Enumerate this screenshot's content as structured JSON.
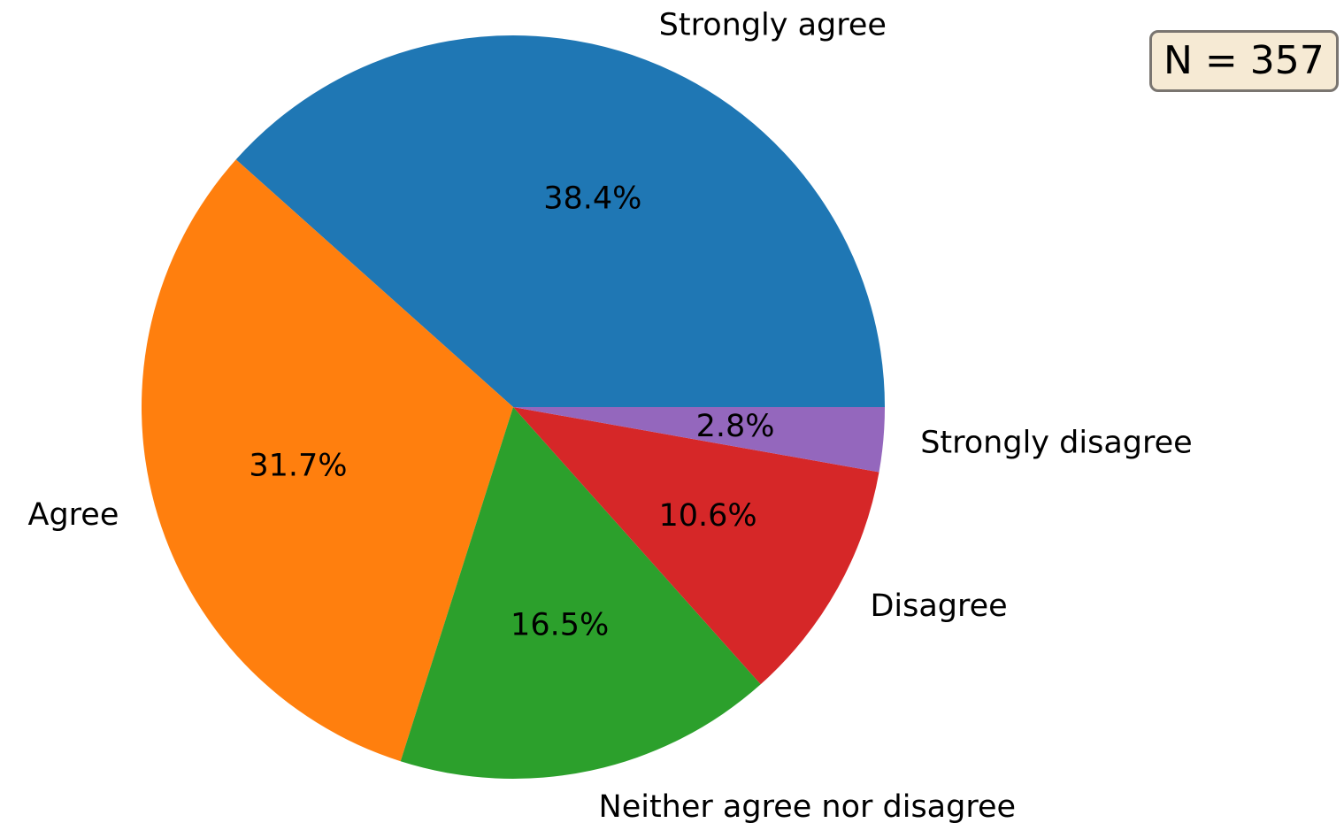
{
  "chart_data": {
    "type": "pie",
    "slices": [
      {
        "label": "Strongly agree",
        "value": 38.4,
        "pct_label": "38.4%",
        "color": "#1f77b4"
      },
      {
        "label": "Agree",
        "value": 31.7,
        "pct_label": "31.7%",
        "color": "#ff7f0e"
      },
      {
        "label": "Neither agree nor disagree",
        "value": 16.5,
        "pct_label": "16.5%",
        "color": "#2ca02c"
      },
      {
        "label": "Disagree",
        "value": 10.6,
        "pct_label": "10.6%",
        "color": "#d62728"
      },
      {
        "label": "Strongly disagree",
        "value": 2.8,
        "pct_label": "2.8%",
        "color": "#9467bd"
      }
    ],
    "start_angle": 0,
    "direction": "counterclockwise",
    "annotation": "N = 357"
  }
}
